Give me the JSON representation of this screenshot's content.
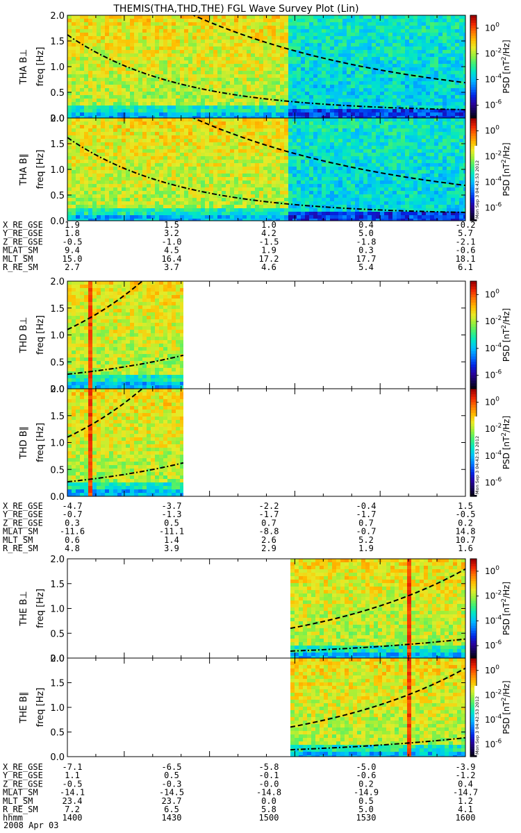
{
  "title": "THEMIS(THA,THD,THE) FGL Wave Survey Plot (Lin)",
  "footer_date": "2008 Apr 03",
  "stamp": "Mon Sep  3 04:42:53 2012",
  "colorbar": {
    "label_prefix": "PSD [nT",
    "label_suffix": "/Hz]",
    "ticks": [
      "10",
      "10",
      "10",
      "10"
    ],
    "tick_exponents": [
      "0",
      "-2",
      "-4",
      "-6"
    ],
    "tick_values_log10": [
      0,
      -2,
      -4,
      -6
    ],
    "range_log10": [
      -7,
      1
    ]
  },
  "colors": {
    "frame": "#000000",
    "background": "#ffffff"
  },
  "chart_data": [
    {
      "type": "heatmap",
      "probe": "THA",
      "component": "B⊥",
      "ylabel": "THA B⊥",
      "yunit": "freq [Hz]",
      "ylim": [
        0,
        2
      ],
      "yticks": [
        "0.0",
        "0.5",
        "1.0",
        "1.5",
        "2.0"
      ],
      "time_range": [
        "13:40",
        "16:00"
      ],
      "data_time": [
        "13:40",
        "14:48"
      ],
      "regime_change": "14:48",
      "dash_curve_hz": [
        [
          1.6,
          1.9
        ],
        [
          14.5,
          1.35
        ],
        [
          14.8,
          1.15
        ],
        [
          15.3,
          0.85
        ],
        [
          15.6,
          0.75
        ],
        [
          16.0,
          0.62
        ]
      ],
      "dashdot_curve_hz": [
        [
          13.67,
          1.45
        ],
        [
          14.2,
          0.55
        ],
        [
          14.8,
          0.25
        ],
        [
          15.3,
          0.18
        ],
        [
          16.0,
          0.11
        ]
      ]
    },
    {
      "type": "heatmap",
      "probe": "THA",
      "component": "B∥",
      "ylabel": "THA B∥",
      "yunit": "freq [Hz]",
      "ylim": [
        0,
        2
      ],
      "yticks": [
        "0.0",
        "0.5",
        "1.0",
        "1.5",
        "2.0"
      ],
      "time_range": [
        "13:40",
        "16:00"
      ]
    },
    {
      "type": "heatmap",
      "probe": "THD",
      "component": "B⊥",
      "ylabel": "THD B⊥",
      "yunit": "freq [Hz]",
      "ylim": [
        0,
        2
      ],
      "yticks": [
        "0.0",
        "0.5",
        "1.0",
        "1.5",
        "2.0"
      ],
      "time_range": [
        "13:40",
        "16:00"
      ]
    },
    {
      "type": "heatmap",
      "probe": "THD",
      "component": "B∥",
      "ylabel": "THD B∥",
      "yunit": "freq [Hz]",
      "ylim": [
        0,
        2
      ],
      "yticks": [
        "0.0",
        "0.5",
        "1.0",
        "1.5",
        "2.0"
      ],
      "time_range": [
        "13:40",
        "16:00"
      ]
    },
    {
      "type": "heatmap",
      "probe": "THE",
      "component": "B⊥",
      "ylabel": "THE B⊥",
      "yunit": "freq [Hz]",
      "ylim": [
        0,
        2
      ],
      "yticks": [
        "0.0",
        "0.5",
        "1.0",
        "1.5",
        "2.0"
      ],
      "time_range": [
        "13:40",
        "16:00"
      ]
    },
    {
      "type": "heatmap",
      "probe": "THE",
      "component": "B∥",
      "ylabel": "THE B∥",
      "yunit": "freq [Hz]",
      "ylim": [
        0,
        2
      ],
      "yticks": [
        "0.0",
        "0.5",
        "1.0",
        "1.5",
        "2.0"
      ],
      "time_range": [
        "13:40",
        "16:00"
      ]
    }
  ],
  "ephemeris": [
    {
      "probe": "THA",
      "rows": [
        {
          "label": "X_RE_GSE",
          "values": [
            "1.9",
            "1.5",
            "1.0",
            "0.4",
            "-0.2"
          ]
        },
        {
          "label": "Y_RE_GSE",
          "values": [
            "1.8",
            "3.2",
            "4.2",
            "5.0",
            "5.7"
          ]
        },
        {
          "label": "Z_RE_GSE",
          "values": [
            "-0.5",
            "-1.0",
            "-1.5",
            "-1.8",
            "-2.1"
          ]
        },
        {
          "label": "MLAT_SM",
          "values": [
            "9.4",
            "4.5",
            "1.9",
            "0.3",
            "-0.6"
          ]
        },
        {
          "label": "MLT_SM",
          "values": [
            "15.0",
            "16.4",
            "17.2",
            "17.7",
            "18.1"
          ]
        },
        {
          "label": "R_RE_SM",
          "values": [
            "2.7",
            "3.7",
            "4.6",
            "5.4",
            "6.1"
          ]
        }
      ]
    },
    {
      "probe": "THD",
      "rows": [
        {
          "label": "X_RE_GSE",
          "values": [
            "-4.7",
            "-3.7",
            "-2.2",
            "-0.4",
            "1.5"
          ]
        },
        {
          "label": "Y_RE_GSE",
          "values": [
            "-0.7",
            "-1.3",
            "-1.7",
            "-1.7",
            "-0.5"
          ]
        },
        {
          "label": "Z_RE_GSE",
          "values": [
            "0.3",
            "0.5",
            "0.7",
            "0.7",
            "0.2"
          ]
        },
        {
          "label": "MLAT_SM",
          "values": [
            "-11.6",
            "-11.1",
            "-8.8",
            "-0.7",
            "14.8"
          ]
        },
        {
          "label": "MLT_SM",
          "values": [
            "0.6",
            "1.4",
            "2.6",
            "5.2",
            "10.7"
          ]
        },
        {
          "label": "R_RE_SM",
          "values": [
            "4.8",
            "3.9",
            "2.9",
            "1.9",
            "1.6"
          ]
        }
      ]
    },
    {
      "probe": "THE",
      "rows": [
        {
          "label": "X_RE_GSE",
          "values": [
            "-7.1",
            "-6.5",
            "-5.8",
            "-5.0",
            "-3.9"
          ]
        },
        {
          "label": "Y_RE_GSE",
          "values": [
            "1.1",
            "0.5",
            "-0.1",
            "-0.6",
            "-1.2"
          ]
        },
        {
          "label": "Z_RE_GSE",
          "values": [
            "-0.5",
            "-0.3",
            "-0.0",
            "0.2",
            "0.4"
          ]
        },
        {
          "label": "MLAT_SM",
          "values": [
            "-14.1",
            "-14.5",
            "-14.8",
            "-14.9",
            "-14.7"
          ]
        },
        {
          "label": "MLT_SM",
          "values": [
            "23.4",
            "23.7",
            "0.0",
            "0.5",
            "1.2"
          ]
        },
        {
          "label": "R_RE_SM",
          "values": [
            "7.2",
            "6.5",
            "5.8",
            "5.0",
            "4.1"
          ]
        },
        {
          "label": "hhmm",
          "values": [
            "1400",
            "1430",
            "1500",
            "1530",
            "1600"
          ]
        }
      ]
    }
  ]
}
